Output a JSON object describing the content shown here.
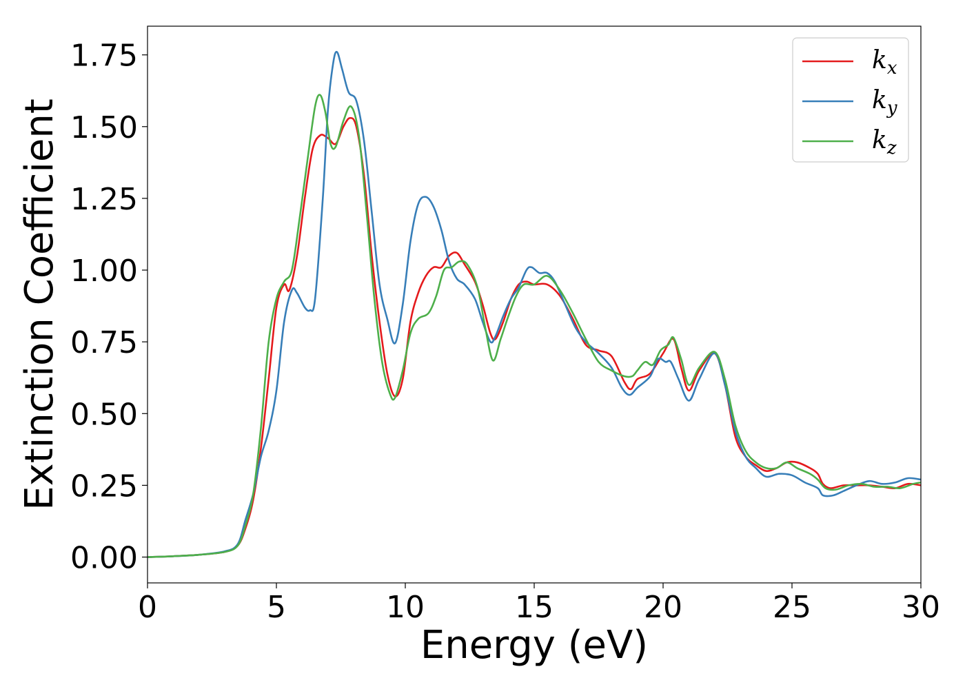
{
  "chart_data": {
    "type": "line",
    "title": "",
    "xlabel": "Energy (eV)",
    "ylabel": "Extinction Coefficient",
    "xlim": [
      0,
      30
    ],
    "ylim": [
      -0.09,
      1.85
    ],
    "xticks": [
      0,
      5,
      10,
      15,
      20,
      25,
      30
    ],
    "xtick_labels": [
      "0",
      "5",
      "10",
      "15",
      "20",
      "25",
      "30"
    ],
    "yticks": [
      0.0,
      0.25,
      0.5,
      0.75,
      1.0,
      1.25,
      1.5,
      1.75
    ],
    "ytick_labels": [
      "0.00",
      "0.25",
      "0.50",
      "0.75",
      "1.00",
      "1.25",
      "1.50",
      "1.75"
    ],
    "grid": false,
    "legend_position": "top-right",
    "series": [
      {
        "name": "k_x",
        "legend_base": "k",
        "legend_sub": "x",
        "color": "#e41a1c",
        "points": [
          [
            0,
            0.0
          ],
          [
            1,
            0.003
          ],
          [
            2,
            0.008
          ],
          [
            3,
            0.018
          ],
          [
            3.5,
            0.04
          ],
          [
            3.8,
            0.1
          ],
          [
            4.1,
            0.2
          ],
          [
            4.4,
            0.38
          ],
          [
            4.7,
            0.62
          ],
          [
            5.0,
            0.87
          ],
          [
            5.3,
            0.95
          ],
          [
            5.5,
            0.93
          ],
          [
            5.8,
            1.05
          ],
          [
            6.1,
            1.25
          ],
          [
            6.4,
            1.42
          ],
          [
            6.7,
            1.47
          ],
          [
            7.0,
            1.46
          ],
          [
            7.3,
            1.44
          ],
          [
            7.6,
            1.5
          ],
          [
            7.85,
            1.53
          ],
          [
            8.1,
            1.5
          ],
          [
            8.4,
            1.33
          ],
          [
            8.7,
            1.05
          ],
          [
            9.0,
            0.82
          ],
          [
            9.3,
            0.64
          ],
          [
            9.6,
            0.56
          ],
          [
            9.9,
            0.62
          ],
          [
            10.2,
            0.82
          ],
          [
            10.5,
            0.92
          ],
          [
            10.8,
            0.98
          ],
          [
            11.1,
            1.01
          ],
          [
            11.4,
            1.01
          ],
          [
            11.7,
            1.05
          ],
          [
            12.0,
            1.06
          ],
          [
            12.3,
            1.02
          ],
          [
            12.7,
            0.96
          ],
          [
            13.0,
            0.88
          ],
          [
            13.3,
            0.78
          ],
          [
            13.5,
            0.76
          ],
          [
            13.8,
            0.82
          ],
          [
            14.1,
            0.9
          ],
          [
            14.4,
            0.95
          ],
          [
            14.7,
            0.96
          ],
          [
            15.0,
            0.95
          ],
          [
            15.5,
            0.95
          ],
          [
            16.0,
            0.91
          ],
          [
            16.5,
            0.83
          ],
          [
            17.0,
            0.74
          ],
          [
            17.5,
            0.72
          ],
          [
            18.0,
            0.7
          ],
          [
            18.5,
            0.61
          ],
          [
            18.75,
            0.585
          ],
          [
            19.0,
            0.62
          ],
          [
            19.5,
            0.64
          ],
          [
            20.0,
            0.71
          ],
          [
            20.4,
            0.76
          ],
          [
            20.7,
            0.66
          ],
          [
            21.0,
            0.58
          ],
          [
            21.4,
            0.65
          ],
          [
            22.0,
            0.71
          ],
          [
            22.4,
            0.6
          ],
          [
            22.8,
            0.42
          ],
          [
            23.2,
            0.35
          ],
          [
            23.6,
            0.32
          ],
          [
            24.0,
            0.3
          ],
          [
            24.4,
            0.31
          ],
          [
            24.8,
            0.33
          ],
          [
            25.2,
            0.33
          ],
          [
            25.7,
            0.31
          ],
          [
            26.0,
            0.29
          ],
          [
            26.2,
            0.255
          ],
          [
            26.5,
            0.24
          ],
          [
            27.0,
            0.25
          ],
          [
            27.5,
            0.25
          ],
          [
            28.0,
            0.25
          ],
          [
            28.5,
            0.245
          ],
          [
            29.0,
            0.24
          ],
          [
            29.5,
            0.255
          ],
          [
            30.0,
            0.25
          ]
        ]
      },
      {
        "name": "k_y",
        "legend_base": "k",
        "legend_sub": "y",
        "color": "#377eb8",
        "points": [
          [
            0,
            0.0
          ],
          [
            1,
            0.003
          ],
          [
            2,
            0.008
          ],
          [
            3,
            0.02
          ],
          [
            3.5,
            0.045
          ],
          [
            3.8,
            0.13
          ],
          [
            4.1,
            0.22
          ],
          [
            4.4,
            0.35
          ],
          [
            4.7,
            0.44
          ],
          [
            5.0,
            0.58
          ],
          [
            5.3,
            0.82
          ],
          [
            5.6,
            0.93
          ],
          [
            5.8,
            0.92
          ],
          [
            6.1,
            0.87
          ],
          [
            6.3,
            0.86
          ],
          [
            6.5,
            0.9
          ],
          [
            6.8,
            1.25
          ],
          [
            7.0,
            1.56
          ],
          [
            7.2,
            1.72
          ],
          [
            7.35,
            1.76
          ],
          [
            7.55,
            1.7
          ],
          [
            7.8,
            1.62
          ],
          [
            8.1,
            1.59
          ],
          [
            8.4,
            1.45
          ],
          [
            8.7,
            1.2
          ],
          [
            9.0,
            0.95
          ],
          [
            9.3,
            0.83
          ],
          [
            9.6,
            0.745
          ],
          [
            9.9,
            0.88
          ],
          [
            10.2,
            1.1
          ],
          [
            10.5,
            1.23
          ],
          [
            10.8,
            1.255
          ],
          [
            11.1,
            1.22
          ],
          [
            11.4,
            1.14
          ],
          [
            11.7,
            1.03
          ],
          [
            12.0,
            0.97
          ],
          [
            12.3,
            0.95
          ],
          [
            12.7,
            0.9
          ],
          [
            13.0,
            0.82
          ],
          [
            13.3,
            0.75
          ],
          [
            13.5,
            0.77
          ],
          [
            13.8,
            0.84
          ],
          [
            14.1,
            0.9
          ],
          [
            14.4,
            0.94
          ],
          [
            14.7,
            1.0
          ],
          [
            14.9,
            1.01
          ],
          [
            15.2,
            0.99
          ],
          [
            15.5,
            0.99
          ],
          [
            15.8,
            0.96
          ],
          [
            16.2,
            0.88
          ],
          [
            16.6,
            0.8
          ],
          [
            17.0,
            0.75
          ],
          [
            17.5,
            0.71
          ],
          [
            18.0,
            0.66
          ],
          [
            18.4,
            0.59
          ],
          [
            18.7,
            0.565
          ],
          [
            19.0,
            0.59
          ],
          [
            19.5,
            0.63
          ],
          [
            19.8,
            0.69
          ],
          [
            20.1,
            0.68
          ],
          [
            20.3,
            0.68
          ],
          [
            20.6,
            0.62
          ],
          [
            21.0,
            0.545
          ],
          [
            21.4,
            0.62
          ],
          [
            22.0,
            0.71
          ],
          [
            22.4,
            0.6
          ],
          [
            22.8,
            0.44
          ],
          [
            23.2,
            0.35
          ],
          [
            23.6,
            0.31
          ],
          [
            24.0,
            0.28
          ],
          [
            24.5,
            0.29
          ],
          [
            25.0,
            0.285
          ],
          [
            25.5,
            0.26
          ],
          [
            26.0,
            0.24
          ],
          [
            26.2,
            0.215
          ],
          [
            26.6,
            0.215
          ],
          [
            27.0,
            0.23
          ],
          [
            27.5,
            0.25
          ],
          [
            28.0,
            0.265
          ],
          [
            28.5,
            0.255
          ],
          [
            29.0,
            0.26
          ],
          [
            29.5,
            0.275
          ],
          [
            30.0,
            0.27
          ]
        ]
      },
      {
        "name": "k_z",
        "legend_base": "k",
        "legend_sub": "z",
        "color": "#4daf4a",
        "points": [
          [
            0,
            0.0
          ],
          [
            1,
            0.003
          ],
          [
            2,
            0.008
          ],
          [
            3,
            0.018
          ],
          [
            3.5,
            0.04
          ],
          [
            3.8,
            0.11
          ],
          [
            4.1,
            0.22
          ],
          [
            4.4,
            0.45
          ],
          [
            4.7,
            0.75
          ],
          [
            5.0,
            0.9
          ],
          [
            5.3,
            0.96
          ],
          [
            5.6,
            1.0
          ],
          [
            5.9,
            1.18
          ],
          [
            6.2,
            1.38
          ],
          [
            6.5,
            1.57
          ],
          [
            6.7,
            1.61
          ],
          [
            6.9,
            1.55
          ],
          [
            7.1,
            1.44
          ],
          [
            7.3,
            1.43
          ],
          [
            7.6,
            1.52
          ],
          [
            7.9,
            1.57
          ],
          [
            8.2,
            1.47
          ],
          [
            8.5,
            1.2
          ],
          [
            8.8,
            0.9
          ],
          [
            9.1,
            0.68
          ],
          [
            9.4,
            0.57
          ],
          [
            9.6,
            0.555
          ],
          [
            9.9,
            0.65
          ],
          [
            10.2,
            0.78
          ],
          [
            10.5,
            0.83
          ],
          [
            10.9,
            0.85
          ],
          [
            11.2,
            0.91
          ],
          [
            11.5,
            1.0
          ],
          [
            11.8,
            1.01
          ],
          [
            12.1,
            1.03
          ],
          [
            12.4,
            1.02
          ],
          [
            12.8,
            0.94
          ],
          [
            13.1,
            0.8
          ],
          [
            13.4,
            0.685
          ],
          [
            13.7,
            0.76
          ],
          [
            14.0,
            0.84
          ],
          [
            14.3,
            0.91
          ],
          [
            14.6,
            0.95
          ],
          [
            15.0,
            0.95
          ],
          [
            15.5,
            0.98
          ],
          [
            16.0,
            0.93
          ],
          [
            16.5,
            0.85
          ],
          [
            17.0,
            0.76
          ],
          [
            17.5,
            0.68
          ],
          [
            18.0,
            0.65
          ],
          [
            18.5,
            0.63
          ],
          [
            18.8,
            0.63
          ],
          [
            19.0,
            0.65
          ],
          [
            19.3,
            0.68
          ],
          [
            19.6,
            0.67
          ],
          [
            19.9,
            0.72
          ],
          [
            20.2,
            0.74
          ],
          [
            20.4,
            0.765
          ],
          [
            20.7,
            0.69
          ],
          [
            21.0,
            0.6
          ],
          [
            21.4,
            0.66
          ],
          [
            22.0,
            0.715
          ],
          [
            22.4,
            0.62
          ],
          [
            22.8,
            0.46
          ],
          [
            23.2,
            0.37
          ],
          [
            23.6,
            0.33
          ],
          [
            24.0,
            0.31
          ],
          [
            24.4,
            0.31
          ],
          [
            24.8,
            0.33
          ],
          [
            25.2,
            0.31
          ],
          [
            25.7,
            0.29
          ],
          [
            26.0,
            0.27
          ],
          [
            26.3,
            0.24
          ],
          [
            26.7,
            0.235
          ],
          [
            27.2,
            0.25
          ],
          [
            27.7,
            0.255
          ],
          [
            28.2,
            0.245
          ],
          [
            28.7,
            0.245
          ],
          [
            29.2,
            0.24
          ],
          [
            29.7,
            0.255
          ],
          [
            30.0,
            0.26
          ]
        ]
      }
    ]
  }
}
